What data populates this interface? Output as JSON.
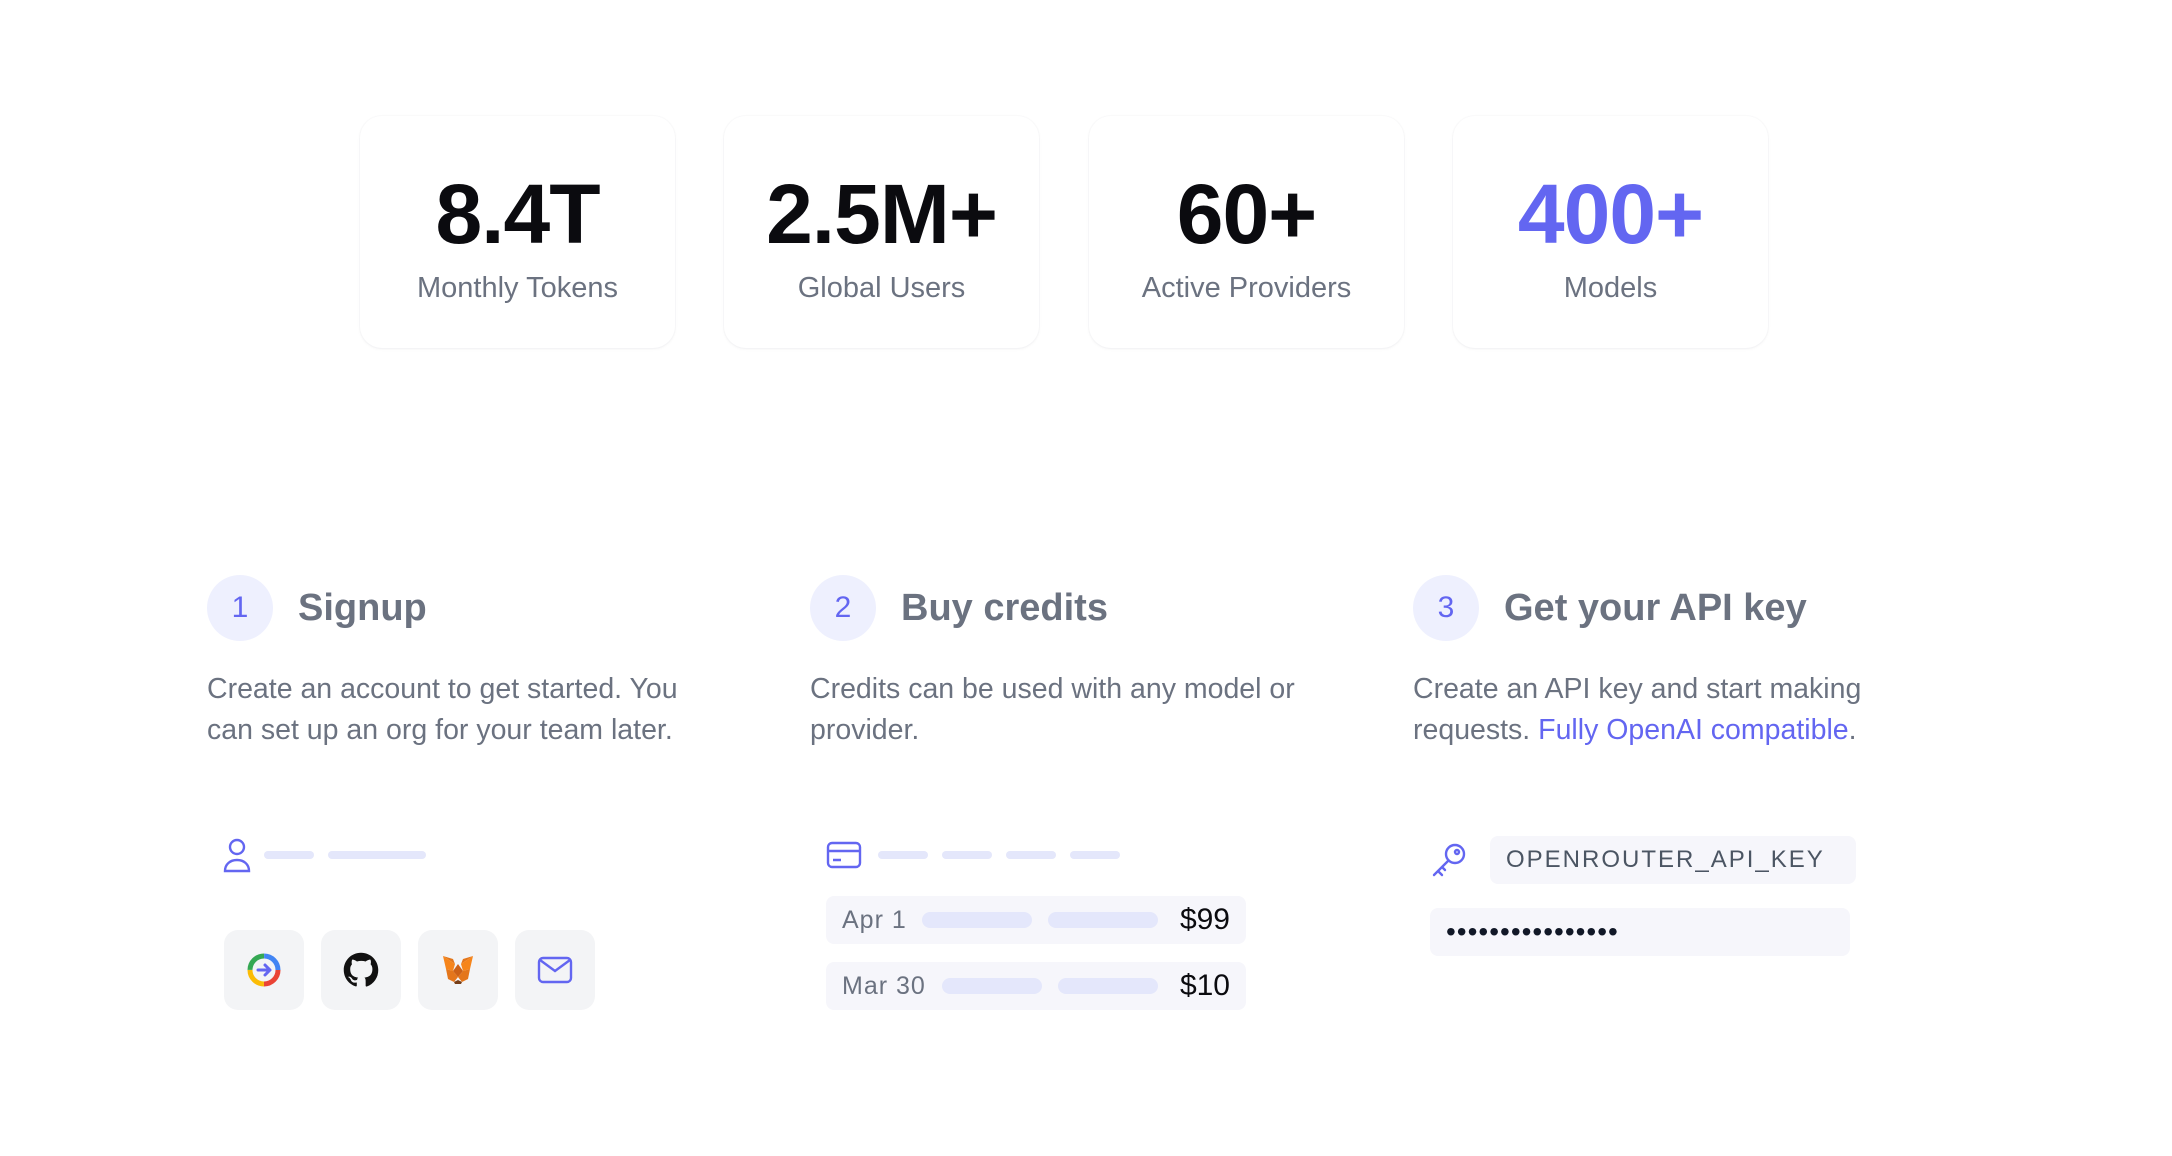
{
  "stats": [
    {
      "value": "8.4T",
      "label": "Monthly Tokens"
    },
    {
      "value": "2.5M+",
      "label": "Global Users"
    },
    {
      "value": "60+",
      "label": "Active Providers"
    },
    {
      "value": "400+",
      "label": "Models"
    }
  ],
  "colors": {
    "accent": "#6366f1",
    "muted_text": "#6b7280",
    "number_badge_bg": "#eef0fe",
    "field_bg": "#f6f6fb"
  },
  "steps": [
    {
      "number": "1",
      "title": "Signup",
      "description": "Create an account to get started. You can set up an org for your team later.",
      "illustration": {
        "user_icon": "user-icon",
        "auth_icons": [
          "google-icon",
          "github-icon",
          "metamask-icon",
          "mail-icon"
        ]
      }
    },
    {
      "number": "2",
      "title": "Buy credits",
      "description": "Credits can be used with any model or provider.",
      "illustration": {
        "card_icon": "credit-card-icon",
        "transactions": [
          {
            "date": "Apr 1",
            "amount": "$99"
          },
          {
            "date": "Mar 30",
            "amount": "$10"
          }
        ]
      }
    },
    {
      "number": "3",
      "title": "Get your API key",
      "description": "Create an API key and start making requests. ",
      "link_text": "Fully OpenAI compatible",
      "description_end": ".",
      "illustration": {
        "key_icon": "key-icon",
        "key_name": "OPENROUTER_API_KEY",
        "key_secret": "••••••••••••••••"
      }
    }
  ]
}
